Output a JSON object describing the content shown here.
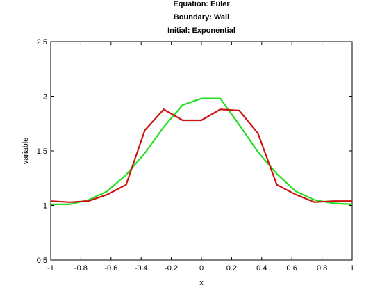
{
  "chart_data": {
    "type": "line",
    "title_lines": [
      "Equation: Euler",
      "Boundary: Wall",
      "Initial: Exponential"
    ],
    "xlabel": "x",
    "ylabel": "variable",
    "xlim": [
      -1,
      1
    ],
    "ylim": [
      0.5,
      2.5
    ],
    "xticks": [
      -1,
      -0.8,
      -0.6,
      -0.4,
      -0.2,
      0,
      0.2,
      0.4,
      0.6,
      0.8,
      1
    ],
    "xtick_labels": [
      "-1",
      "-0.8",
      "-0.6",
      "-0.4",
      "-0.2",
      "0",
      "0.2",
      "0.4",
      "0.6",
      "0.8",
      "1"
    ],
    "yticks": [
      0.5,
      1,
      1.5,
      2,
      2.5
    ],
    "ytick_labels": [
      "0.5",
      "1",
      "1.5",
      "2",
      "2.5"
    ],
    "grid": false,
    "series": [
      {
        "color": "#22dd22",
        "x": [
          -1,
          -0.875,
          -0.75,
          -0.625,
          -0.5,
          -0.375,
          -0.25,
          -0.125,
          0,
          0.125,
          0.25,
          0.375,
          0.5,
          0.625,
          0.75,
          0.875,
          1
        ],
        "values": [
          1.01,
          1.01,
          1.05,
          1.13,
          1.28,
          1.48,
          1.72,
          1.92,
          1.98,
          1.98,
          1.74,
          1.49,
          1.29,
          1.13,
          1.05,
          1.02,
          1.01
        ]
      },
      {
        "color": "#cc1111",
        "x": [
          -1,
          -0.875,
          -0.75,
          -0.625,
          -0.5,
          -0.375,
          -0.25,
          -0.125,
          0,
          0.125,
          0.25,
          0.375,
          0.5,
          0.625,
          0.75,
          0.875,
          1
        ],
        "values": [
          1.04,
          1.03,
          1.04,
          1.1,
          1.19,
          1.69,
          1.88,
          1.78,
          1.78,
          1.88,
          1.87,
          1.66,
          1.19,
          1.1,
          1.03,
          1.04,
          1.04
        ]
      }
    ]
  }
}
